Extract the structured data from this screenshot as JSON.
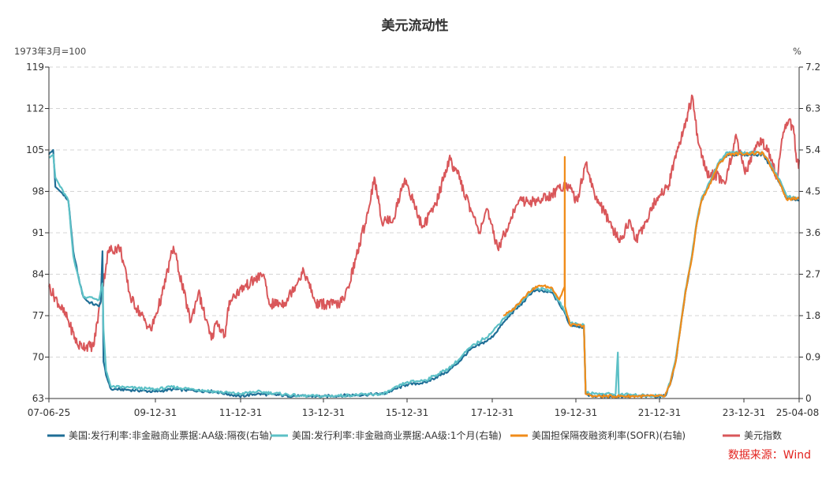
{
  "chart_data": {
    "type": "line",
    "title": "美元流动性",
    "left_axis_unit": "1973年3月=100",
    "right_axis_unit": "%",
    "source": "数据来源：Wind",
    "x_tick_labels": [
      "07-06-25",
      "09-12-31",
      "11-12-31",
      "13-12-31",
      "15-12-31",
      "17-12-31",
      "19-12-31",
      "21-12-31",
      "23-12-31",
      "25-04-08"
    ],
    "xlim": [
      "2007-06-25",
      "2025-04-08"
    ],
    "y_left": {
      "ticks": [
        63,
        70,
        77,
        84,
        91,
        98,
        105,
        112,
        119
      ],
      "ylim": [
        63,
        119
      ]
    },
    "y_right": {
      "ticks": [
        "0",
        "0.9",
        "1.8",
        "2.7",
        "3.6",
        "4.5",
        "5.4",
        "6.3",
        "7.2"
      ],
      "ylim": [
        0,
        7.2
      ]
    },
    "grid": true,
    "legend_position": "bottom",
    "series": [
      {
        "name": "美国:发行利率:非金融商业票据:AA级:隔夜(右轴)",
        "axis": "right",
        "color": "#1f6e96",
        "points": [
          [
            "2007-06-25",
            5.3
          ],
          [
            "2007-08-01",
            5.4
          ],
          [
            "2007-08-20",
            4.6
          ],
          [
            "2007-10-01",
            4.5
          ],
          [
            "2007-12-10",
            4.3
          ],
          [
            "2008-01-22",
            3.2
          ],
          [
            "2008-03-18",
            2.5
          ],
          [
            "2008-04-20",
            2.2
          ],
          [
            "2008-06-01",
            2.1
          ],
          [
            "2008-09-01",
            2.0
          ],
          [
            "2008-09-16",
            2.1
          ],
          [
            "2008-10-01",
            3.2
          ],
          [
            "2008-10-10",
            0.8
          ],
          [
            "2008-11-01",
            0.5
          ],
          [
            "2008-12-16",
            0.2
          ],
          [
            "2009-03-01",
            0.2
          ],
          [
            "2009-12-31",
            0.15
          ],
          [
            "2010-06-01",
            0.2
          ],
          [
            "2011-06-01",
            0.15
          ],
          [
            "2011-12-31",
            0.05
          ],
          [
            "2012-06-01",
            0.1
          ],
          [
            "2013-06-01",
            0.05
          ],
          [
            "2013-12-31",
            0.05
          ],
          [
            "2015-06-01",
            0.1
          ],
          [
            "2015-12-16",
            0.3
          ],
          [
            "2016-06-01",
            0.35
          ],
          [
            "2016-12-15",
            0.6
          ],
          [
            "2017-03-16",
            0.8
          ],
          [
            "2017-06-15",
            1.05
          ],
          [
            "2017-12-14",
            1.3
          ],
          [
            "2018-03-22",
            1.6
          ],
          [
            "2018-06-14",
            1.85
          ],
          [
            "2018-09-27",
            2.1
          ],
          [
            "2018-12-20",
            2.35
          ],
          [
            "2019-06-01",
            2.3
          ],
          [
            "2019-08-01",
            2.05
          ],
          [
            "2019-09-19",
            1.85
          ],
          [
            "2019-10-31",
            1.6
          ],
          [
            "2020-03-01",
            1.55
          ],
          [
            "2020-03-16",
            0.1
          ],
          [
            "2020-06-01",
            0.05
          ],
          [
            "2021-06-01",
            0.05
          ],
          [
            "2022-01-31",
            0.05
          ],
          [
            "2022-03-17",
            0.3
          ],
          [
            "2022-05-05",
            0.8
          ],
          [
            "2022-06-16",
            1.55
          ],
          [
            "2022-07-28",
            2.3
          ],
          [
            "2022-09-22",
            3.05
          ],
          [
            "2022-11-03",
            3.8
          ],
          [
            "2022-12-15",
            4.3
          ],
          [
            "2023-02-02",
            4.55
          ],
          [
            "2023-03-23",
            4.8
          ],
          [
            "2023-05-04",
            5.05
          ],
          [
            "2023-07-27",
            5.3
          ],
          [
            "2024-06-01",
            5.3
          ],
          [
            "2024-09-19",
            4.85
          ],
          [
            "2024-11-08",
            4.6
          ],
          [
            "2024-12-19",
            4.35
          ],
          [
            "2025-04-08",
            4.3
          ]
        ]
      },
      {
        "name": "美国:发行利率:非金融商业票据:AA级:1个月(右轴)",
        "axis": "right",
        "color": "#5cc0c6",
        "points": [
          [
            "2007-06-25",
            5.25
          ],
          [
            "2007-08-01",
            5.3
          ],
          [
            "2007-08-20",
            4.8
          ],
          [
            "2007-10-01",
            4.6
          ],
          [
            "2007-12-10",
            4.3
          ],
          [
            "2008-01-22",
            3.1
          ],
          [
            "2008-03-18",
            2.5
          ],
          [
            "2008-04-20",
            2.2
          ],
          [
            "2008-06-01",
            2.2
          ],
          [
            "2008-09-01",
            2.15
          ],
          [
            "2008-10-01",
            2.5
          ],
          [
            "2008-10-10",
            1.5
          ],
          [
            "2008-11-01",
            0.6
          ],
          [
            "2008-12-16",
            0.25
          ],
          [
            "2009-03-01",
            0.25
          ],
          [
            "2009-12-31",
            0.2
          ],
          [
            "2010-06-01",
            0.25
          ],
          [
            "2011-06-01",
            0.15
          ],
          [
            "2011-12-31",
            0.1
          ],
          [
            "2012-06-01",
            0.15
          ],
          [
            "2013-06-01",
            0.06
          ],
          [
            "2013-12-31",
            0.05
          ],
          [
            "2015-06-01",
            0.1
          ],
          [
            "2015-12-16",
            0.35
          ],
          [
            "2016-06-01",
            0.4
          ],
          [
            "2016-12-15",
            0.65
          ],
          [
            "2017-03-16",
            0.85
          ],
          [
            "2017-06-15",
            1.1
          ],
          [
            "2017-12-14",
            1.4
          ],
          [
            "2018-03-22",
            1.7
          ],
          [
            "2018-06-14",
            1.9
          ],
          [
            "2018-09-27",
            2.15
          ],
          [
            "2018-12-20",
            2.4
          ],
          [
            "2019-06-01",
            2.35
          ],
          [
            "2019-08-01",
            2.1
          ],
          [
            "2019-09-19",
            1.9
          ],
          [
            "2019-10-31",
            1.65
          ],
          [
            "2020-03-01",
            1.6
          ],
          [
            "2020-03-16",
            0.15
          ],
          [
            "2020-06-01",
            0.1
          ],
          [
            "2020-12-01",
            0.1
          ],
          [
            "2020-12-20",
            1.0
          ],
          [
            "2020-12-28",
            0.1
          ],
          [
            "2021-06-01",
            0.07
          ],
          [
            "2022-01-31",
            0.06
          ],
          [
            "2022-03-17",
            0.35
          ],
          [
            "2022-05-05",
            0.85
          ],
          [
            "2022-06-16",
            1.6
          ],
          [
            "2022-07-28",
            2.35
          ],
          [
            "2022-09-22",
            3.1
          ],
          [
            "2022-11-03",
            3.85
          ],
          [
            "2022-12-15",
            4.35
          ],
          [
            "2023-02-02",
            4.6
          ],
          [
            "2023-03-23",
            4.85
          ],
          [
            "2023-05-04",
            5.1
          ],
          [
            "2023-07-27",
            5.35
          ],
          [
            "2024-06-01",
            5.33
          ],
          [
            "2024-09-19",
            4.9
          ],
          [
            "2024-11-08",
            4.65
          ],
          [
            "2024-12-19",
            4.4
          ],
          [
            "2025-04-08",
            4.35
          ]
        ]
      },
      {
        "name": "美国担保隔夜融资利率(SOFR)(右轴)",
        "axis": "right",
        "color": "#f08c1a",
        "points": [
          [
            "2018-04-03",
            1.8
          ],
          [
            "2018-06-14",
            1.9
          ],
          [
            "2018-09-27",
            2.2
          ],
          [
            "2018-12-20",
            2.4
          ],
          [
            "2019-03-01",
            2.45
          ],
          [
            "2019-06-01",
            2.4
          ],
          [
            "2019-08-01",
            2.15
          ],
          [
            "2019-09-16",
            2.43
          ],
          [
            "2019-09-17",
            5.25
          ],
          [
            "2019-09-18",
            2.55
          ],
          [
            "2019-09-19",
            2.0
          ],
          [
            "2019-10-31",
            1.6
          ],
          [
            "2020-03-01",
            1.58
          ],
          [
            "2020-03-16",
            0.1
          ],
          [
            "2020-06-01",
            0.05
          ],
          [
            "2021-06-01",
            0.05
          ],
          [
            "2022-01-31",
            0.05
          ],
          [
            "2022-03-17",
            0.3
          ],
          [
            "2022-05-05",
            0.8
          ],
          [
            "2022-06-16",
            1.55
          ],
          [
            "2022-07-28",
            2.3
          ],
          [
            "2022-09-22",
            3.05
          ],
          [
            "2022-11-03",
            3.8
          ],
          [
            "2022-12-15",
            4.3
          ],
          [
            "2023-02-02",
            4.55
          ],
          [
            "2023-03-23",
            4.8
          ],
          [
            "2023-05-04",
            5.05
          ],
          [
            "2023-07-27",
            5.31
          ],
          [
            "2024-06-01",
            5.33
          ],
          [
            "2024-09-19",
            4.85
          ],
          [
            "2024-11-08",
            4.6
          ],
          [
            "2024-12-19",
            4.33
          ],
          [
            "2025-04-08",
            4.35
          ]
        ]
      },
      {
        "name": "美元指数",
        "axis": "left",
        "color": "#d9575a",
        "points": [
          [
            "2007-06-25",
            81.9
          ],
          [
            "2007-12-01",
            76.5
          ],
          [
            "2008-03-01",
            72.0
          ],
          [
            "2008-07-15",
            71.8
          ],
          [
            "2008-11-20",
            88.0
          ],
          [
            "2009-03-04",
            88.5
          ],
          [
            "2009-06-01",
            80.0
          ],
          [
            "2009-11-25",
            74.5
          ],
          [
            "2010-03-01",
            80.5
          ],
          [
            "2010-06-07",
            88.7
          ],
          [
            "2010-11-04",
            75.9
          ],
          [
            "2011-01-10",
            81.0
          ],
          [
            "2011-05-02",
            72.9
          ],
          [
            "2011-06-15",
            76.0
          ],
          [
            "2011-08-30",
            73.5
          ],
          [
            "2011-10-04",
            79.5
          ],
          [
            "2012-01-13",
            81.5
          ],
          [
            "2012-07-24",
            84.0
          ],
          [
            "2012-09-14",
            78.9
          ],
          [
            "2013-01-31",
            79.2
          ],
          [
            "2013-07-09",
            84.7
          ],
          [
            "2013-10-24",
            79.0
          ],
          [
            "2014-05-08",
            78.9
          ],
          [
            "2014-07-01",
            80.0
          ],
          [
            "2014-10-03",
            86.5
          ],
          [
            "2015-01-23",
            95.0
          ],
          [
            "2015-03-13",
            100.4
          ],
          [
            "2015-05-15",
            93.0
          ],
          [
            "2015-08-24",
            93.3
          ],
          [
            "2015-12-02",
            100.2
          ],
          [
            "2016-05-03",
            91.9
          ],
          [
            "2016-08-30",
            96.0
          ],
          [
            "2016-12-20",
            103.5
          ],
          [
            "2017-03-01",
            101.0
          ],
          [
            "2017-09-08",
            91.1
          ],
          [
            "2017-11-07",
            95.0
          ],
          [
            "2018-02-15",
            88.3
          ],
          [
            "2018-08-15",
            96.5
          ],
          [
            "2018-12-31",
            96.2
          ],
          [
            "2019-06-01",
            97.5
          ],
          [
            "2019-09-30",
            99.4
          ],
          [
            "2020-01-01",
            96.4
          ],
          [
            "2020-03-19",
            102.8
          ],
          [
            "2020-06-01",
            97.5
          ],
          [
            "2021-01-06",
            89.4
          ],
          [
            "2021-03-31",
            93.2
          ],
          [
            "2021-05-25",
            89.6
          ],
          [
            "2021-11-24",
            96.9
          ],
          [
            "2022-03-07",
            99.1
          ],
          [
            "2022-05-12",
            104.8
          ],
          [
            "2022-07-14",
            108.6
          ],
          [
            "2022-09-27",
            114.1
          ],
          [
            "2022-11-15",
            106.3
          ],
          [
            "2023-02-01",
            101.0
          ],
          [
            "2023-04-13",
            100.8
          ],
          [
            "2023-07-13",
            99.6
          ],
          [
            "2023-10-03",
            107.3
          ],
          [
            "2023-12-27",
            100.9
          ],
          [
            "2024-04-16",
            106.4
          ],
          [
            "2024-07-01",
            105.8
          ],
          [
            "2024-09-27",
            100.2
          ],
          [
            "2024-11-22",
            108.0
          ],
          [
            "2025-01-13",
            110.2
          ],
          [
            "2025-02-28",
            107.5
          ],
          [
            "2025-03-05",
            105.0
          ],
          [
            "2025-04-03",
            101.9
          ],
          [
            "2025-04-08",
            103.3
          ]
        ]
      }
    ]
  }
}
